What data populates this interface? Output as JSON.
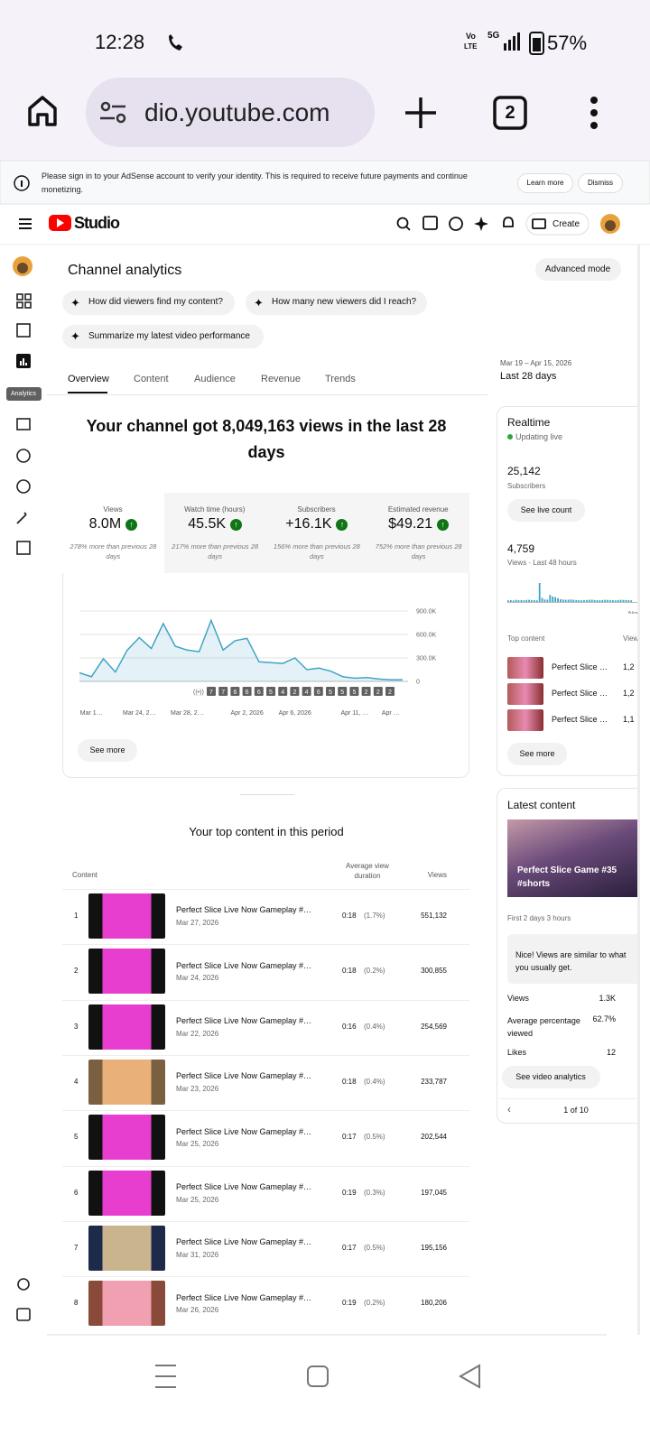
{
  "status_bar": {
    "time": "12:28",
    "carrier_top": "Vo",
    "carrier_bottom": "LTE",
    "network": "5G",
    "battery": "57%"
  },
  "browser": {
    "url": "dio.youtube.com",
    "tab_count": "2"
  },
  "banner": {
    "message": "Please sign in to your AdSense account to verify your identity. This is required to receive future payments and continue monetizing.",
    "learn_more": "Learn more",
    "dismiss": "Dismiss"
  },
  "header": {
    "logo": "Studio",
    "create": "Create"
  },
  "sidebar": {
    "active_label": "Analytics"
  },
  "analytics": {
    "title": "Channel analytics",
    "advanced_mode": "Advanced mode",
    "prompts": [
      "How did viewers find my content?",
      "How many new viewers did I reach?",
      "Summarize my latest video performance"
    ],
    "tabs": [
      "Overview",
      "Content",
      "Audience",
      "Revenue",
      "Trends"
    ],
    "date_range": "Mar 19 – Apr 15, 2026",
    "period": "Last 28 days",
    "headline": "Your channel got 8,049,163 views in the last 28 days",
    "metrics": [
      {
        "label": "Views",
        "value": "8.0M",
        "note": "278% more than previous 28 days"
      },
      {
        "label": "Watch time (hours)",
        "value": "45.5K",
        "note": "217% more than previous 28 days"
      },
      {
        "label": "Subscribers",
        "value": "+16.1K",
        "note": "156% more than previous 28 days"
      },
      {
        "label": "Estimated revenue",
        "value": "$49.21",
        "note": "752% more than previous 28 days"
      }
    ],
    "see_more": "See more"
  },
  "chart_data": [
    {
      "type": "line",
      "categories": [
        null,
        "Mar 1…",
        null,
        null,
        null,
        "Mar 24, 2…",
        null,
        null,
        null,
        "Mar 28, 2…",
        null,
        null,
        null,
        null,
        "Apr 2, 2026",
        null,
        null,
        null,
        "Apr 6, 2026",
        null,
        null,
        null,
        null,
        "Apr 11, …",
        null,
        null,
        "Apr …",
        null
      ],
      "values": [
        110000,
        60000,
        290000,
        120000,
        400000,
        560000,
        420000,
        740000,
        450000,
        400000,
        380000,
        780000,
        400000,
        520000,
        550000,
        250000,
        240000,
        230000,
        300000,
        150000,
        170000,
        130000,
        60000,
        40000,
        50000,
        30000,
        20000,
        20000
      ],
      "color": "#3fa3c6",
      "ylim": [
        0,
        900000
      ],
      "yticks": [
        0,
        {
          "value": 300000,
          "label": "300.0K"
        },
        {
          "value": 600000,
          "label": "600.0K"
        },
        {
          "value": 900000,
          "label": "900.0K"
        }
      ],
      "grid": true,
      "annotations": [
        "7",
        "7",
        "6",
        "6",
        "6",
        "5",
        "4",
        "2",
        "4",
        "6",
        "5",
        "5",
        "5",
        "2",
        "2",
        "2"
      ]
    },
    {
      "type": "bar",
      "values": [
        60,
        70,
        55,
        80,
        65,
        70,
        60,
        75,
        80,
        70,
        65,
        60,
        700,
        150,
        90,
        85,
        260,
        200,
        180,
        140,
        100,
        90,
        80,
        85,
        90,
        80,
        70,
        65,
        60,
        70,
        75,
        80,
        85,
        70,
        65,
        60,
        70,
        80,
        75,
        70,
        65,
        60,
        70,
        80,
        75,
        70,
        65,
        60
      ],
      "color": "#3fa3c6"
    }
  ],
  "realtime": {
    "title": "Realtime",
    "status": "Updating live",
    "subscribers": "25,142",
    "subscribers_label": "Subscribers",
    "live_count": "See live count",
    "views": "4,759",
    "views_label": "Views · Last 48 hours",
    "axis_end": "Now",
    "top_content": "Top content",
    "views_header": "Views",
    "items": [
      {
        "title": "Perfect Slice …",
        "views": "1,2"
      },
      {
        "title": "Perfect Slice …",
        "views": "1,2"
      },
      {
        "title": "Perfect Slice …",
        "views": "1,1"
      }
    ],
    "see_more": "See more"
  },
  "top_content": {
    "title": "Your top content in this period",
    "columns": [
      "Content",
      "Average view duration",
      "Views"
    ],
    "rows": [
      {
        "rank": 1,
        "title": "Perfect Slice Live Now Gameplay #…",
        "date": "Mar 27, 2026",
        "duration": "0:18",
        "share": "(1.7%)",
        "views": "551,132"
      },
      {
        "rank": 2,
        "title": "Perfect Slice Live Now Gameplay #…",
        "date": "Mar 24, 2026",
        "duration": "0:18",
        "share": "(0.2%)",
        "views": "300,855"
      },
      {
        "rank": 3,
        "title": "Perfect Slice Live Now Gameplay #…",
        "date": "Mar 22, 2026",
        "duration": "0:16",
        "share": "(0.4%)",
        "views": "254,569"
      },
      {
        "rank": 4,
        "title": "Perfect Slice Live Now Gameplay #…",
        "date": "Mar 23, 2026",
        "duration": "0:18",
        "share": "(0.4%)",
        "views": "233,787"
      },
      {
        "rank": 5,
        "title": "Perfect Slice Live Now Gameplay #…",
        "date": "Mar 25, 2026",
        "duration": "0:17",
        "share": "(0.5%)",
        "views": "202,544"
      },
      {
        "rank": 6,
        "title": "Perfect Slice Live Now Gameplay #…",
        "date": "Mar 25, 2026",
        "duration": "0:19",
        "share": "(0.3%)",
        "views": "197,045"
      },
      {
        "rank": 7,
        "title": "Perfect Slice Live Now Gameplay #…",
        "date": "Mar 31, 2026",
        "duration": "0:17",
        "share": "(0.5%)",
        "views": "195,156"
      },
      {
        "rank": 8,
        "title": "Perfect Slice Live Now Gameplay #…",
        "date": "Mar 26, 2026",
        "duration": "0:19",
        "share": "(0.2%)",
        "views": "180,206"
      }
    ]
  },
  "latest_content": {
    "title": "Latest content",
    "video_title": "Perfect Slice Game #35 #shorts",
    "window": "First 2 days 3 hours",
    "message": "Nice! Views are similar to what you usually get.",
    "stats": [
      {
        "label": "Views",
        "value": "1.3K"
      },
      {
        "label": "Average percentage viewed",
        "value": "62.7%"
      },
      {
        "label": "Likes",
        "value": "12"
      }
    ],
    "button": "See video analytics",
    "pager": "1 of 10"
  }
}
